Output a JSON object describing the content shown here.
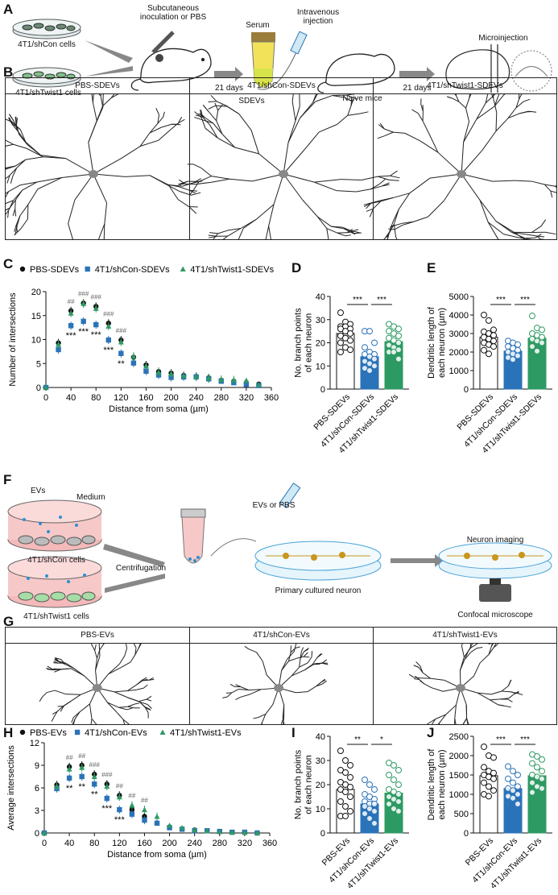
{
  "panels": {
    "A": "A",
    "B": "B",
    "C": "C",
    "D": "D",
    "E": "E",
    "F": "F",
    "G": "G",
    "H": "H",
    "I": "I",
    "J": "J"
  },
  "schematic_a": {
    "cells1": "4T1/shCon cells",
    "cells2": "4T1/shTwist1 cells",
    "inoculation": "Subcutaneous inoculation or PBS",
    "days1": "21 days",
    "serum": "Serum",
    "sdevs": "SDEVs",
    "iv": "Intravenous injection",
    "naive": "Naive mice",
    "days2": "21 days",
    "micro": "Microinjection"
  },
  "panel_b": {
    "headers": [
      "PBS-SDEVs",
      "4T1/shCon-SDEVs",
      "4T1/shTwist1-SDEVs"
    ]
  },
  "schematic_f": {
    "evs": "EVs",
    "medium": "Medium",
    "cells1": "4T1/shCon cells",
    "cells2": "4T1/shTwist1 cells",
    "centrifugation": "Centrifugation",
    "evs_or_pbs": "EVs  or PBS",
    "primary": "Primary cultured neuron",
    "imaging": "Neuron imaging",
    "confocal": "Confocal microscope"
  },
  "panel_g": {
    "headers": [
      "PBS-EVs",
      "4T1/shCon-EVs",
      "4T1/shTwist1-EVs"
    ]
  },
  "colors": {
    "black": "#111111",
    "blue": "#2b73b8",
    "green": "#2e9a63"
  },
  "chart_data": [
    {
      "id": "C",
      "type": "scatter",
      "xlabel": "Distance from soma (µm)",
      "ylabel": "Number of intersections",
      "xlim": [
        0,
        360
      ],
      "ylim": [
        0,
        20
      ],
      "xticks": [
        0,
        40,
        80,
        120,
        160,
        200,
        240,
        280,
        320,
        360
      ],
      "yticks": [
        0,
        5,
        10,
        15,
        20
      ],
      "legend": "top",
      "x": [
        0,
        20,
        40,
        60,
        80,
        100,
        120,
        140,
        160,
        180,
        200,
        220,
        240,
        260,
        280,
        300,
        320,
        340
      ],
      "series": [
        {
          "name": "PBS-SDEVs",
          "marker": "circle",
          "color": "#111111",
          "values": [
            0,
            9.3,
            16,
            17.6,
            16.9,
            13.4,
            9.9,
            6.3,
            4.7,
            3.3,
            3,
            2.5,
            2.3,
            2,
            1.5,
            1.3,
            1,
            0.7
          ]
        },
        {
          "name": "4T1/shCon-SDEVs",
          "marker": "square",
          "color": "#2b73b8",
          "values": [
            0,
            7.9,
            12.9,
            13.8,
            13.1,
            9.9,
            7.1,
            5.1,
            3.4,
            2.6,
            2.1,
            2.2,
            2.2,
            1.8,
            1.3,
            1,
            0.6,
            0.4
          ]
        },
        {
          "name": "4T1/shTwist1-SDEVs",
          "marker": "triangle",
          "color": "#2e9a63",
          "values": [
            0,
            9,
            15.5,
            17.5,
            16.5,
            12.8,
            9.5,
            6.5,
            4.5,
            3.2,
            2.9,
            2.5,
            2.3,
            2,
            1.7,
            1.6,
            1.5,
            0.6
          ]
        }
      ],
      "annotations_hash": [
        {
          "x": 40,
          "text": "##"
        },
        {
          "x": 60,
          "text": "###"
        },
        {
          "x": 80,
          "text": "###"
        },
        {
          "x": 100,
          "text": "###"
        },
        {
          "x": 120,
          "text": "###"
        }
      ],
      "annotations_star": [
        {
          "x": 40,
          "text": "***"
        },
        {
          "x": 60,
          "text": "***"
        },
        {
          "x": 80,
          "text": "***"
        },
        {
          "x": 100,
          "text": "***"
        },
        {
          "x": 120,
          "text": "**"
        }
      ]
    },
    {
      "id": "D",
      "type": "bar",
      "ylabel": "No. branch points of each neuron",
      "ylim": [
        0,
        40
      ],
      "yticks": [
        0,
        10,
        20,
        30,
        40
      ],
      "categories": [
        "PBS-SDEVs",
        "4T1/shCon-SDEVs",
        "4T1/shTwist1-SDEVs"
      ],
      "values": [
        24,
        14,
        20.5
      ],
      "points": [
        [
          33,
          29,
          28,
          27,
          27,
          26,
          26,
          25,
          24,
          23,
          22,
          21,
          20,
          18,
          17,
          16
        ],
        [
          25,
          25,
          20,
          18,
          16,
          15,
          15,
          14,
          13,
          12,
          11,
          10,
          9,
          8
        ],
        [
          28,
          27,
          26,
          25,
          24,
          23,
          22,
          21,
          20,
          19,
          18,
          17,
          16,
          16,
          13
        ]
      ],
      "significance": [
        "***",
        "***"
      ]
    },
    {
      "id": "E",
      "type": "bar",
      "ylabel": "Dendritic length of each neuron (µm)",
      "ylim": [
        0,
        5000
      ],
      "yticks": [
        0,
        1000,
        2000,
        3000,
        4000,
        5000
      ],
      "categories": [
        "PBS-SDEVs",
        "4T1/shCon-SDEVs",
        "4T1/shTwist1-SDEVs"
      ],
      "values": [
        2800,
        2050,
        2750
      ],
      "points": [
        [
          4000,
          3700,
          3200,
          3100,
          3000,
          2900,
          2800,
          2700,
          2600,
          2500,
          2400,
          2300,
          2100,
          1900
        ],
        [
          2600,
          2500,
          2400,
          2300,
          2200,
          2100,
          2000,
          1900,
          1800,
          1700,
          1600
        ],
        [
          3950,
          3300,
          3200,
          3000,
          2900,
          2800,
          2700,
          2600,
          2500,
          2300,
          2050
        ]
      ],
      "significance": [
        "***",
        "***"
      ]
    },
    {
      "id": "H",
      "type": "scatter",
      "xlabel": "Distance from soma (µm)",
      "ylabel": "Average intersections",
      "xlim": [
        0,
        360
      ],
      "ylim": [
        0,
        12
      ],
      "xticks": [
        0,
        40,
        80,
        120,
        160,
        200,
        240,
        280,
        320,
        360
      ],
      "yticks": [
        0,
        3,
        6,
        9,
        12
      ],
      "legend": "top",
      "x": [
        0,
        20,
        40,
        60,
        80,
        100,
        120,
        140,
        160,
        180,
        200,
        220,
        240,
        260,
        280,
        300,
        320,
        340
      ],
      "series": [
        {
          "name": "PBS-EVs",
          "marker": "circle",
          "color": "#111111",
          "values": [
            0,
            6.4,
            8.8,
            9,
            7.8,
            6.5,
            5,
            3.1,
            2.2,
            1.3,
            0.8,
            0.5,
            0.4,
            0.3,
            0.2,
            0.1,
            0.1,
            0
          ]
        },
        {
          "name": "4T1/shCon-EVs",
          "marker": "square",
          "color": "#2b73b8",
          "values": [
            0,
            5.9,
            7.3,
            7.5,
            6.5,
            4.6,
            3.1,
            2.5,
            1.7,
            1.3,
            0.7,
            0.5,
            0.3,
            0.3,
            0.2,
            0.1,
            0.1,
            0
          ]
        },
        {
          "name": "4T1/shTwist1-EVs",
          "marker": "triangle",
          "color": "#2e9a63",
          "values": [
            0,
            6.2,
            8.5,
            8.7,
            7.5,
            6.2,
            4.8,
            3.7,
            3.1,
            2.2,
            1,
            0.7,
            0.4,
            0.3,
            0.2,
            0.1,
            0.1,
            0
          ]
        }
      ],
      "annotations_hash": [
        {
          "x": 40,
          "text": "##"
        },
        {
          "x": 60,
          "text": "##"
        },
        {
          "x": 80,
          "text": "###"
        },
        {
          "x": 100,
          "text": "###"
        },
        {
          "x": 120,
          "text": "##"
        },
        {
          "x": 140,
          "text": "##"
        },
        {
          "x": 160,
          "text": "##"
        }
      ],
      "annotations_star": [
        {
          "x": 40,
          "text": "**"
        },
        {
          "x": 60,
          "text": "**"
        },
        {
          "x": 80,
          "text": "**"
        },
        {
          "x": 100,
          "text": "***"
        },
        {
          "x": 120,
          "text": "***"
        }
      ]
    },
    {
      "id": "I",
      "type": "bar",
      "ylabel": "No. branch points of each neuron",
      "ylim": [
        0,
        40
      ],
      "yticks": [
        0,
        10,
        20,
        30,
        40
      ],
      "categories": [
        "PBS-EVs",
        "4T1/shCon-EVs",
        "4T1/shTwist1-EVs"
      ],
      "values": [
        18,
        12,
        16.5
      ],
      "points": [
        [
          34,
          30,
          28,
          26,
          25,
          23,
          21,
          20,
          19,
          18,
          17,
          15,
          13,
          11,
          9,
          7,
          7
        ],
        [
          22,
          20,
          18,
          16,
          15,
          14,
          13,
          12,
          12,
          11,
          10,
          9,
          8,
          6,
          4
        ],
        [
          29,
          28,
          26,
          24,
          22,
          20,
          18,
          17,
          16,
          15,
          14,
          13,
          12,
          10,
          9
        ]
      ],
      "significance": [
        "**",
        "*"
      ]
    },
    {
      "id": "J",
      "type": "bar",
      "ylabel": "Dendritic length of each neuron (µm)",
      "ylim": [
        0,
        2500
      ],
      "yticks": [
        0,
        500,
        1000,
        1500,
        2000,
        2500
      ],
      "categories": [
        "PBS-EVs",
        "4T1/shCon-EVs",
        "4T1/shTwist1-EVs"
      ],
      "values": [
        1480,
        1150,
        1480
      ],
      "points": [
        [
          2230,
          2000,
          1950,
          1700,
          1600,
          1550,
          1500,
          1450,
          1400,
          1300,
          1200,
          1100,
          1000,
          950
        ],
        [
          1720,
          1600,
          1500,
          1400,
          1300,
          1200,
          1150,
          1100,
          1000,
          950,
          900,
          750
        ],
        [
          2030,
          1980,
          1900,
          1800,
          1700,
          1600,
          1500,
          1450,
          1400,
          1300,
          1200,
          1150,
          1050
        ]
      ],
      "significance": [
        "***",
        "***"
      ]
    }
  ]
}
